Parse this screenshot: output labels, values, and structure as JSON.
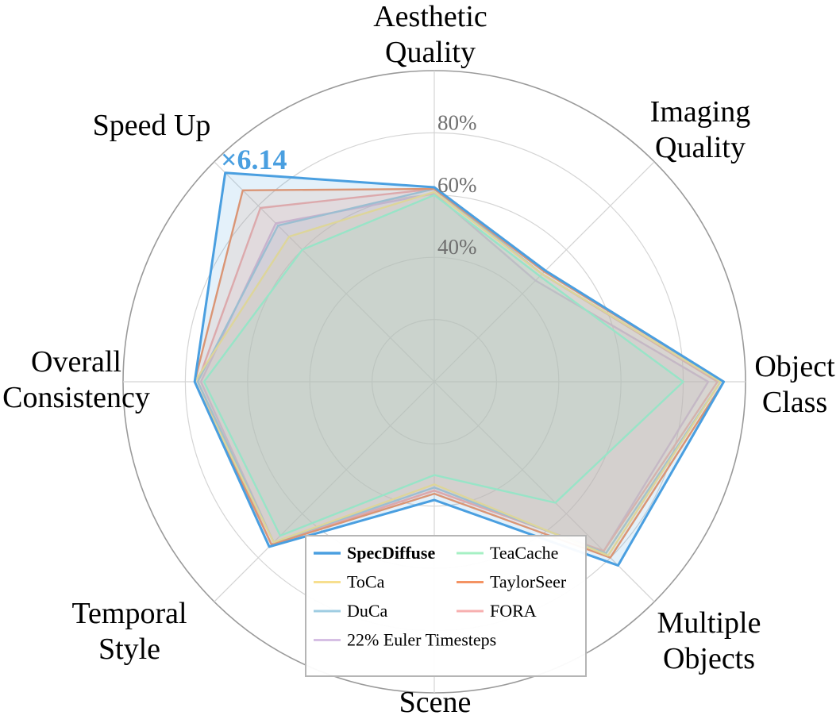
{
  "chart_data": {
    "type": "radar",
    "axes": [
      {
        "label_lines": [
          "Aesthetic",
          "Quality"
        ]
      },
      {
        "label_lines": [
          "Imaging",
          "Quality"
        ]
      },
      {
        "label_lines": [
          "Object",
          "Class"
        ]
      },
      {
        "label_lines": [
          "Multiple",
          "Objects"
        ]
      },
      {
        "label_lines": [
          "Scene"
        ]
      },
      {
        "label_lines": [
          "Temporal",
          "Style"
        ]
      },
      {
        "label_lines": [
          "Overall",
          "Consistency"
        ]
      },
      {
        "label_lines": [
          "Speed Up"
        ]
      }
    ],
    "rlim": [
      0,
      100
    ],
    "grid_rings": [
      20,
      40,
      60,
      80,
      100
    ],
    "tick_labels": [
      {
        "value": 40,
        "text": "40%"
      },
      {
        "value": 60,
        "text": "60%"
      },
      {
        "value": 80,
        "text": "80%"
      }
    ],
    "series": [
      {
        "name": "SpecDiffuse",
        "color": "#4a9fe0",
        "bold": true,
        "values": [
          62.5,
          50.5,
          93,
          83.5,
          38,
          75,
          77,
          95
        ]
      },
      {
        "name": "TeaCache",
        "color": "#a6f0c4",
        "bold": false,
        "values": [
          60,
          48,
          80,
          55,
          30,
          70,
          74,
          60
        ]
      },
      {
        "name": "ToCa",
        "color": "#f7df8f",
        "bold": false,
        "values": [
          61,
          49,
          92,
          79,
          33,
          73,
          77,
          66
        ]
      },
      {
        "name": "TaylorSeer",
        "color": "#f49363",
        "bold": false,
        "values": [
          62,
          50,
          93,
          80,
          36,
          74,
          77,
          87
        ]
      },
      {
        "name": "DuCa",
        "color": "#9fcde2",
        "bold": false,
        "values": [
          62,
          49,
          92,
          78,
          34,
          73,
          76,
          71
        ]
      },
      {
        "name": "FORA",
        "color": "#f7b0b0",
        "bold": false,
        "values": [
          62,
          49,
          91,
          77,
          35,
          74,
          76,
          79
        ]
      },
      {
        "name": "22% Euler Timesteps",
        "color": "#d6bfe4",
        "bold": false,
        "values": [
          60.5,
          46,
          88,
          77,
          35,
          73,
          75,
          72
        ]
      }
    ],
    "legend_order": [
      "SpecDiffuse",
      "TeaCache",
      "ToCa",
      "TaylorSeer",
      "DuCa",
      "FORA",
      "22% Euler Timesteps"
    ],
    "legend_position": "bottom-center",
    "annotation": {
      "text": "×6.14",
      "axis": "Speed Up",
      "color": "#4a9fe0"
    }
  }
}
